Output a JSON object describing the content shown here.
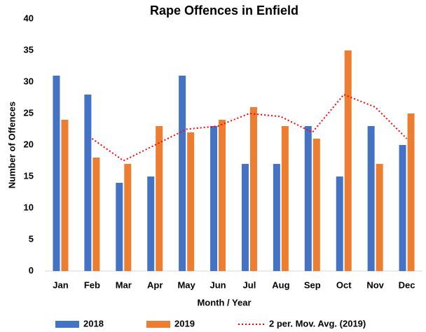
{
  "chart_data": {
    "type": "bar",
    "title": "Rape Offences in Enfield",
    "x_label": "Month / Year",
    "y_label": "Number of Offences",
    "categories": [
      "Jan",
      "Feb",
      "Mar",
      "Apr",
      "May",
      "Jun",
      "Jul",
      "Aug",
      "Sep",
      "Oct",
      "Nov",
      "Dec"
    ],
    "series": [
      {
        "name": "2018",
        "color": "#4472c4",
        "values": [
          31,
          28,
          14,
          15,
          31,
          23,
          17,
          17,
          23,
          15,
          23,
          20
        ]
      },
      {
        "name": "2019",
        "color": "#ed7d31",
        "values": [
          24,
          18,
          17,
          23,
          22,
          24,
          26,
          23,
          21,
          35,
          17,
          25
        ]
      },
      {
        "name": "2 per. Mov. Avg. (2019)",
        "type": "line",
        "style": "dotted",
        "color": "#ff0000",
        "values": [
          null,
          21,
          17.5,
          20,
          22.5,
          23,
          25,
          24.5,
          22,
          28,
          26,
          21
        ]
      }
    ],
    "ylim": [
      0,
      40
    ],
    "yticks": [
      0,
      5,
      10,
      15,
      20,
      25,
      30,
      35,
      40
    ],
    "grid": false,
    "legend": "bottom"
  }
}
